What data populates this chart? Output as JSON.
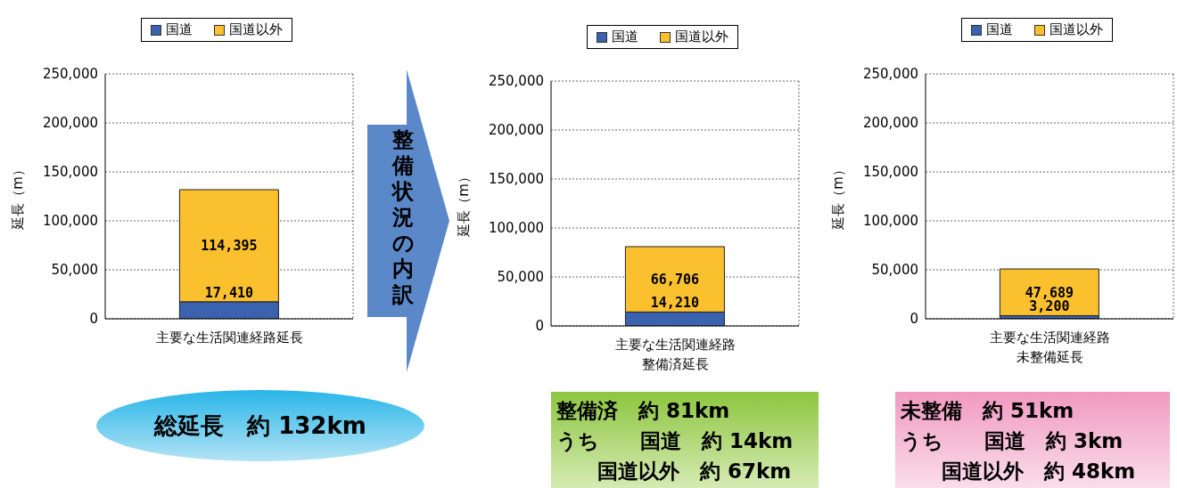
{
  "chart_data": [
    {
      "type": "bar",
      "stacked": true,
      "categories": [
        "主要な生活関連経路延長"
      ],
      "ylabel": "延長（m）",
      "ylim": [
        0,
        250000
      ],
      "yticks": [
        {
          "value": 0,
          "label": "0"
        },
        {
          "value": 50000,
          "label": "50,000"
        },
        {
          "value": 100000,
          "label": "100,000"
        },
        {
          "value": 150000,
          "label": "150,000"
        },
        {
          "value": 200000,
          "label": "200,000"
        },
        {
          "value": 250000,
          "label": "250,000"
        }
      ],
      "grid": "y",
      "legend": "top",
      "series": [
        {
          "name": "国道",
          "color": "#3a62ae",
          "values": [
            17410
          ],
          "value_labels": [
            "17,410"
          ]
        },
        {
          "name": "国道以外",
          "color": "#fbc02d",
          "values": [
            114395
          ],
          "value_labels": [
            "114,395"
          ]
        }
      ],
      "annotations": [
        "整備状況の内訳",
        "総延長　約 132km"
      ]
    },
    {
      "type": "bar",
      "stacked": true,
      "categories": [
        "主要な生活関連経路整備済延長"
      ],
      "ylabel": "延長（m）",
      "ylim": [
        0,
        250000
      ],
      "yticks": [
        {
          "value": 0,
          "label": "0"
        },
        {
          "value": 50000,
          "label": "50,000"
        },
        {
          "value": 100000,
          "label": "100,000"
        },
        {
          "value": 150000,
          "label": "150,000"
        },
        {
          "value": 200000,
          "label": "200,000"
        },
        {
          "value": 250000,
          "label": "250,000"
        }
      ],
      "grid": "y",
      "legend": "top",
      "series": [
        {
          "name": "国道",
          "color": "#3a62ae",
          "values": [
            14210
          ],
          "value_labels": [
            "14,210"
          ]
        },
        {
          "name": "国道以外",
          "color": "#fbc02d",
          "values": [
            66706
          ],
          "value_labels": [
            "66,706"
          ]
        }
      ],
      "annotations": [
        "整備済　約 81km",
        "うち　　国道　約 14km",
        "　　国道以外　約 67km"
      ]
    },
    {
      "type": "bar",
      "stacked": true,
      "categories": [
        "主要な生活関連経路未整備延長"
      ],
      "ylabel": "延長（m）",
      "ylim": [
        0,
        250000
      ],
      "yticks": [
        {
          "value": 0,
          "label": "0"
        },
        {
          "value": 50000,
          "label": "50,000"
        },
        {
          "value": 100000,
          "label": "100,000"
        },
        {
          "value": 150000,
          "label": "150,000"
        },
        {
          "value": 200000,
          "label": "200,000"
        },
        {
          "value": 250000,
          "label": "250,000"
        }
      ],
      "grid": "y",
      "legend": "top",
      "series": [
        {
          "name": "国道",
          "color": "#3a62ae",
          "values": [
            3200
          ],
          "value_labels": [
            "3,200"
          ]
        },
        {
          "name": "国道以外",
          "color": "#fbc02d",
          "values": [
            47689
          ],
          "value_labels": [
            "47,689"
          ]
        }
      ],
      "annotations": [
        "未整備　約 51km",
        "うち　　国道　約 3km",
        "　　国道以外　約 48km"
      ]
    }
  ]
}
